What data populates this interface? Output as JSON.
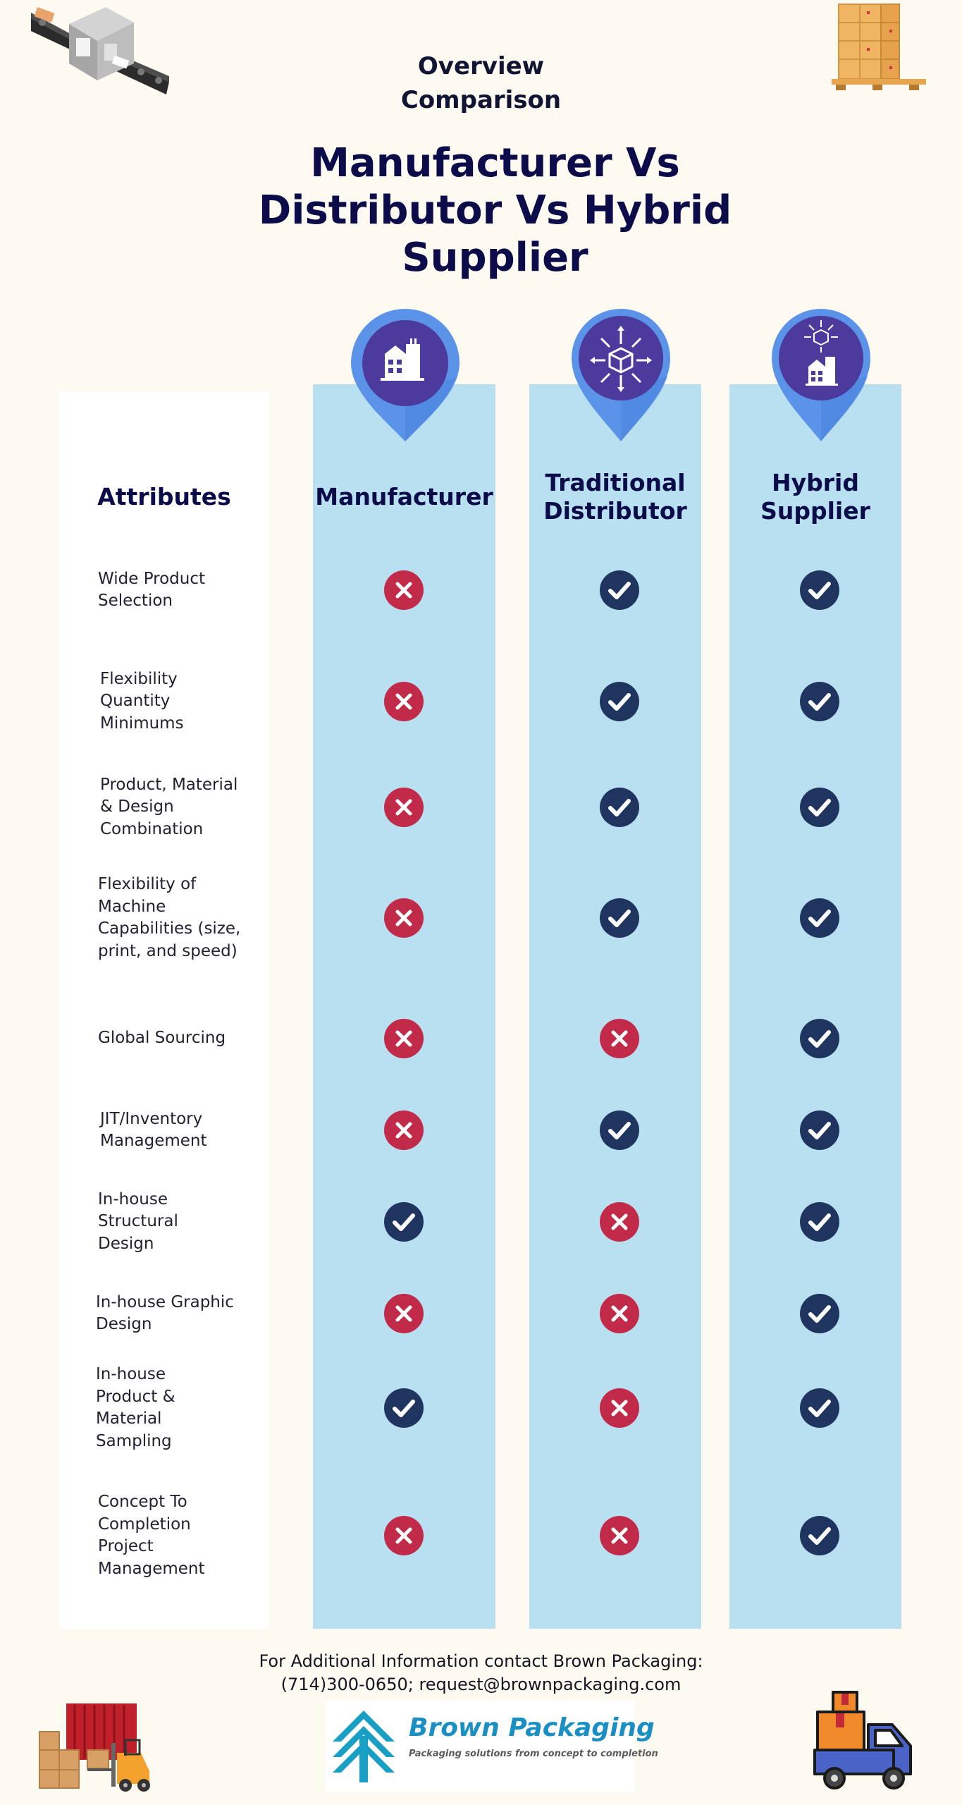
{
  "heading": {
    "overline": [
      "Overview",
      "Comparison"
    ],
    "title": [
      "Manufacturer Vs",
      "Distributor Vs Hybrid",
      "Supplier"
    ]
  },
  "columns": [
    {
      "lines": [
        "Manufacturer"
      ],
      "icon": "factory-icon"
    },
    {
      "lines": [
        "Traditional",
        "Distributor"
      ],
      "icon": "distribution-box-icon"
    },
    {
      "lines": [
        "Hybrid",
        "Supplier"
      ],
      "icon": "hybrid-supply-icon"
    }
  ],
  "attributes_header": "Attributes",
  "attributes": [
    {
      "lines": [
        "Wide Product",
        "Selection"
      ],
      "marks": [
        false,
        true,
        true
      ]
    },
    {
      "lines": [
        "Flexibility",
        "Quantity",
        "Minimums"
      ],
      "marks": [
        false,
        true,
        true
      ]
    },
    {
      "lines": [
        "Product, Material",
        "& Design",
        "Combination"
      ],
      "marks": [
        false,
        true,
        true
      ]
    },
    {
      "lines": [
        "Flexibility of",
        "Machine",
        "Capabilities (size,",
        "print, and speed)"
      ],
      "marks": [
        false,
        true,
        true
      ]
    },
    {
      "lines": [
        "Global Sourcing"
      ],
      "marks": [
        false,
        false,
        true
      ]
    },
    {
      "lines": [
        "JIT/Inventory",
        "Management"
      ],
      "marks": [
        false,
        true,
        true
      ]
    },
    {
      "lines": [
        "In-house",
        "Structural",
        "Design"
      ],
      "marks": [
        true,
        false,
        true
      ]
    },
    {
      "lines": [
        "In-house Graphic",
        "Design"
      ],
      "marks": [
        false,
        false,
        true
      ]
    },
    {
      "lines": [
        "In-house",
        "Product &",
        "Material",
        "Sampling"
      ],
      "marks": [
        true,
        false,
        true
      ]
    },
    {
      "lines": [
        "Concept To",
        "Completion",
        "Project",
        "Management"
      ],
      "marks": [
        false,
        false,
        true
      ]
    }
  ],
  "footer": {
    "lines": [
      "For Additional Information contact Brown Packaging:",
      "(714)300-0650; request@brownpackaging.com"
    ]
  },
  "logo": {
    "name": "Brown Packaging",
    "tagline": "Packaging solutions from concept to completion",
    "icon": "brown-packaging-arrows-logo"
  },
  "decorations": [
    "conveyor-machine-icon",
    "pallet-boxes-icon",
    "warehouse-forklift-icon",
    "delivery-truck-icon"
  ],
  "colors": {
    "background": "#fdfaf1",
    "column_panel": "#b9e0f1",
    "pin_outer": "#5b93e8",
    "pin_inner": "#4c3a9c",
    "check": "#1f3560",
    "cross": "#c12a49",
    "title": "#0c0c4a",
    "logo_blue": "#1a8fc4"
  }
}
